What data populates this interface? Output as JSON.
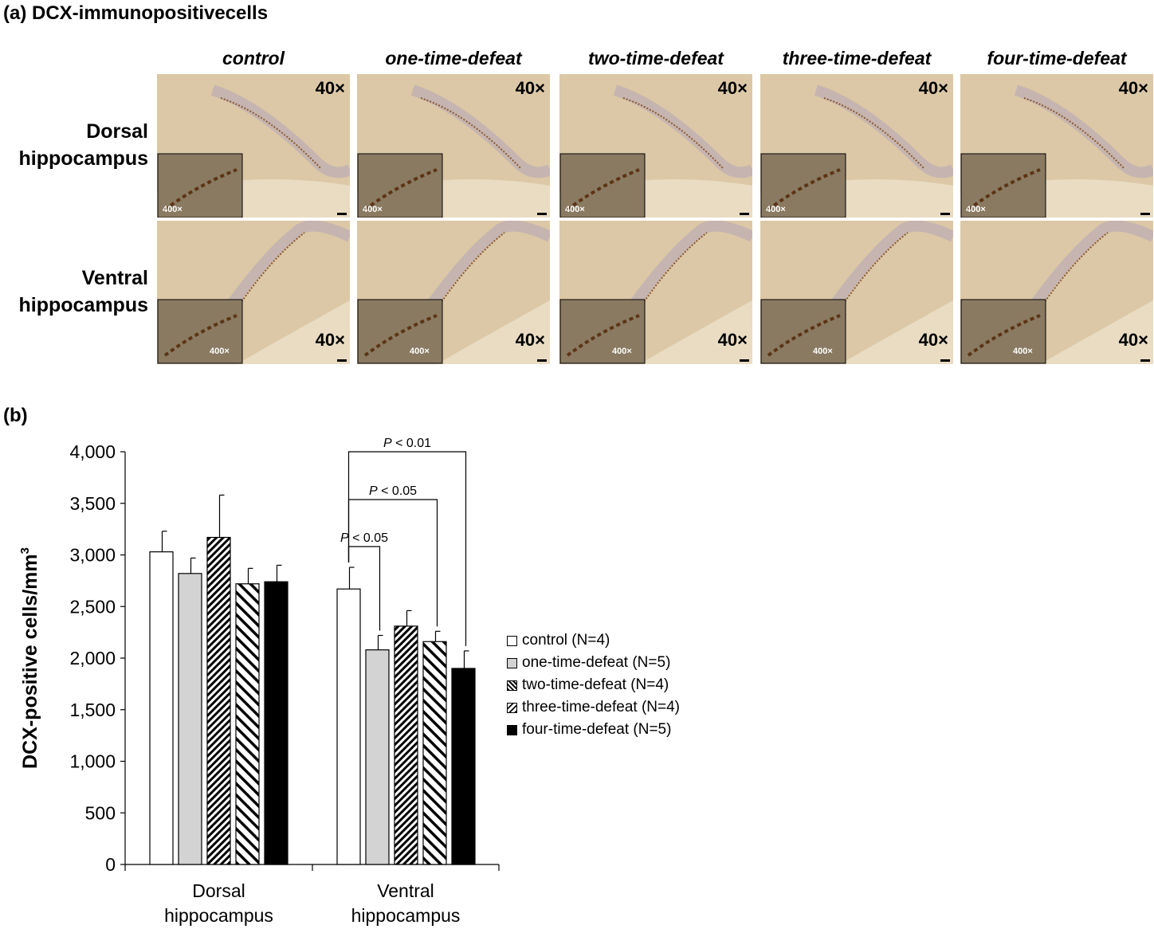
{
  "panel_a": {
    "label": "(a) DCX-immunopositivecells",
    "columns": [
      "control",
      "one-time-defeat",
      "two-time-defeat",
      "three-time-defeat",
      "four-time-defeat"
    ],
    "rows": [
      {
        "name": "dorsal",
        "label_lines": [
          "Dorsal",
          "hippocampus"
        ]
      },
      {
        "name": "ventral",
        "label_lines": [
          "Ventral",
          "hippocampus"
        ]
      }
    ],
    "magnification_label": "40×",
    "inset_magnification_label": "400×",
    "colors": {
      "tissue": "#dcc8a6",
      "tissue_light": "#e9dcc2",
      "stain": "#8a5a2b",
      "inset_bg": "#8a7a62"
    }
  },
  "panel_b": {
    "label": "(b)"
  },
  "chart_data": {
    "type": "bar",
    "categories": [
      [
        "Dorsal",
        "hippocampus"
      ],
      [
        "Ventral",
        "hippocampus"
      ]
    ],
    "ylabel": "DCX-positive cells/mm",
    "ylabel_superscript": "3",
    "ylim": [
      0,
      4000
    ],
    "yticks": [
      0,
      500,
      1000,
      1500,
      2000,
      2500,
      3000,
      3500,
      4000
    ],
    "ytick_labels": [
      "0",
      "500",
      "1,000",
      "1,500",
      "2,000",
      "2,500",
      "3,000",
      "3,500",
      "4,000"
    ],
    "series": [
      {
        "name": "control (N=4)",
        "pattern": "white",
        "values": [
          3030,
          2670
        ],
        "errors": [
          200,
          210
        ]
      },
      {
        "name": "one-time-defeat (N=5)",
        "pattern": "gray",
        "values": [
          2820,
          2080
        ],
        "errors": [
          150,
          140
        ]
      },
      {
        "name": "two-time-defeat (N=4)",
        "pattern": "dense-hatch",
        "values": [
          3170,
          2310
        ],
        "errors": [
          410,
          150
        ]
      },
      {
        "name": "three-time-defeat (N=4)",
        "pattern": "sparse-hatch",
        "values": [
          2720,
          2160
        ],
        "errors": [
          150,
          100
        ]
      },
      {
        "name": "four-time-defeat (N=5)",
        "pattern": "black",
        "values": [
          2740,
          1900
        ],
        "errors": [
          160,
          170
        ]
      }
    ],
    "significance": [
      {
        "from_series": 0,
        "to_series": 1,
        "category": 1,
        "p_label": "P",
        "text": " < 0.05"
      },
      {
        "from_series": 0,
        "to_series": 3,
        "category": 1,
        "p_label": "P",
        "text": " < 0.05"
      },
      {
        "from_series": 0,
        "to_series": 4,
        "category": 1,
        "p_label": "P",
        "text": " < 0.01"
      }
    ],
    "grid": false,
    "legend_position": "right"
  }
}
